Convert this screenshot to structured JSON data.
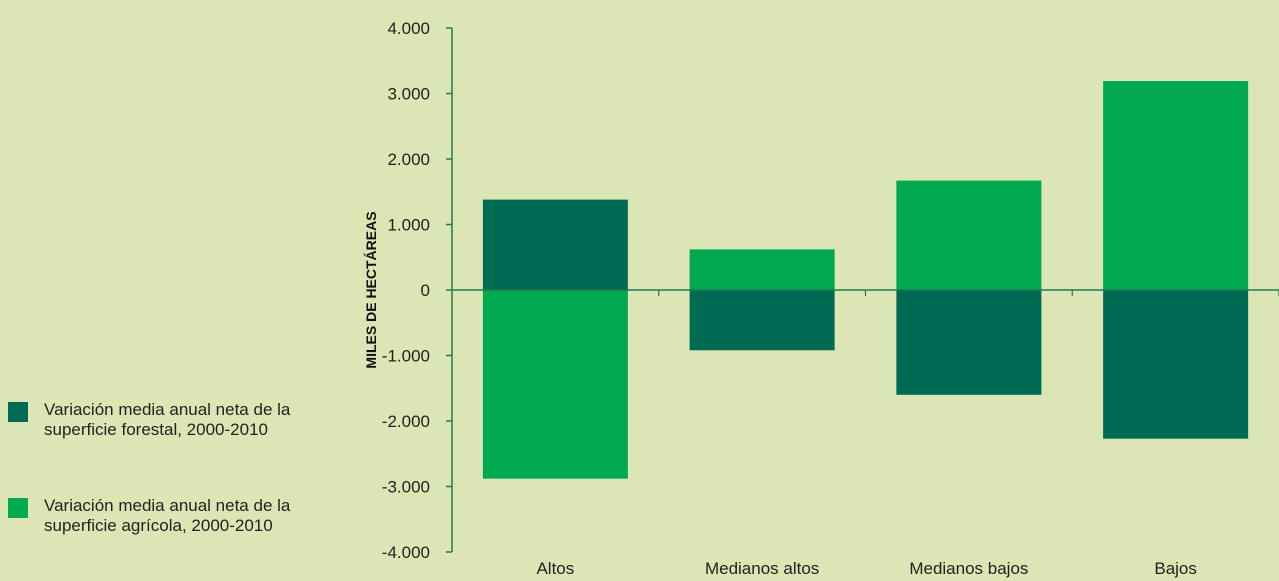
{
  "chart_data": {
    "type": "bar",
    "stacked": true,
    "ylabel": "MILES DE HECTÁREAS",
    "ylim": [
      -4000,
      4000
    ],
    "yticks": [
      4000,
      3000,
      2000,
      1000,
      0,
      -1000,
      -2000,
      -3000,
      -4000
    ],
    "ytick_labels": [
      "4.000",
      "3.000",
      "2.000",
      "1.000",
      "0",
      "-1.000",
      "-2.000",
      "-3.000",
      "-4.000"
    ],
    "categories": [
      "Altos",
      "Medianos altos",
      "Medianos bajos",
      "Bajos"
    ],
    "series": [
      {
        "name": "Variación media anual neta de la superficie forestal, 2000-2010",
        "color": "#006b55",
        "values": [
          1380,
          -920,
          -1600,
          -2270
        ]
      },
      {
        "name": "Variación media anual neta de la superficie agrícola, 2000-2010",
        "color": "#00a84f",
        "values": [
          -2880,
          620,
          1670,
          3190
        ]
      }
    ],
    "legend_position": "bottom-left",
    "grid": false
  },
  "legend": [
    {
      "label": "Variación media anual neta de la superficie forestal, 2000-2010",
      "color": "#006b55"
    },
    {
      "label": "Variación media anual neta de la superficie agrícola, 2000-2010",
      "color": "#00a84f"
    }
  ]
}
